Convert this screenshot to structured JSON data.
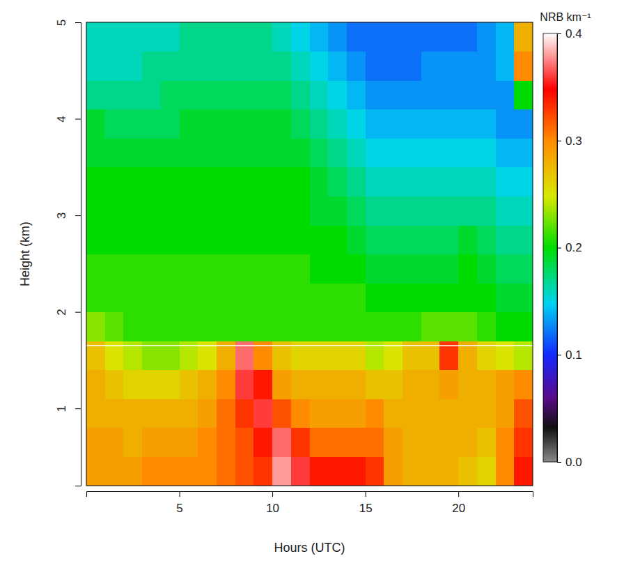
{
  "chart_data": {
    "type": "heatmap",
    "x_label": "Hours (UTC)",
    "y_label": "Height (km)",
    "xlim": [
      0,
      24
    ],
    "ylim": [
      0.2,
      5
    ],
    "xticks": [
      5,
      10,
      15,
      20
    ],
    "yticks": [
      1,
      2,
      3,
      4,
      5
    ],
    "x_edges": [
      0,
      1,
      2,
      3,
      4,
      5,
      6,
      7,
      8,
      9,
      10,
      11,
      12,
      13,
      14,
      15,
      16,
      17,
      18,
      19,
      20,
      21,
      22,
      23,
      24
    ],
    "y_edges": [
      0.2,
      0.5,
      0.8,
      1.1,
      1.4,
      1.7,
      2.0,
      2.3,
      2.6,
      2.9,
      3.2,
      3.5,
      3.8,
      4.1,
      4.4,
      4.7,
      5.0
    ],
    "z": [
      [
        0.29,
        0.29,
        0.29,
        0.3,
        0.3,
        0.3,
        0.3,
        0.31,
        0.32,
        0.33,
        0.38,
        0.36,
        0.34,
        0.34,
        0.34,
        0.33,
        0.29,
        0.28,
        0.28,
        0.28,
        0.27,
        0.26,
        0.3,
        0.34
      ],
      [
        0.29,
        0.29,
        0.28,
        0.29,
        0.29,
        0.29,
        0.3,
        0.31,
        0.32,
        0.34,
        0.37,
        0.33,
        0.31,
        0.31,
        0.31,
        0.31,
        0.29,
        0.28,
        0.28,
        0.28,
        0.28,
        0.27,
        0.3,
        0.33
      ],
      [
        0.28,
        0.28,
        0.28,
        0.28,
        0.28,
        0.28,
        0.29,
        0.31,
        0.33,
        0.36,
        0.32,
        0.3,
        0.29,
        0.29,
        0.29,
        0.3,
        0.28,
        0.28,
        0.28,
        0.28,
        0.28,
        0.28,
        0.29,
        0.32
      ],
      [
        0.28,
        0.27,
        0.26,
        0.26,
        0.26,
        0.27,
        0.28,
        0.3,
        0.36,
        0.34,
        0.29,
        0.28,
        0.28,
        0.28,
        0.28,
        0.27,
        0.27,
        0.28,
        0.28,
        0.29,
        0.28,
        0.28,
        0.29,
        0.3
      ],
      [
        0.27,
        0.25,
        0.24,
        0.23,
        0.23,
        0.24,
        0.25,
        0.28,
        0.37,
        0.3,
        0.27,
        0.26,
        0.26,
        0.26,
        0.26,
        0.24,
        0.25,
        0.27,
        0.27,
        0.33,
        0.28,
        0.26,
        0.25,
        0.24
      ],
      [
        0.23,
        0.22,
        0.21,
        0.21,
        0.21,
        0.21,
        0.21,
        0.21,
        0.21,
        0.21,
        0.21,
        0.21,
        0.21,
        0.21,
        0.21,
        0.21,
        0.21,
        0.21,
        0.22,
        0.22,
        0.22,
        0.21,
        0.2,
        0.2
      ],
      [
        0.21,
        0.21,
        0.21,
        0.21,
        0.21,
        0.21,
        0.21,
        0.21,
        0.21,
        0.21,
        0.21,
        0.21,
        0.21,
        0.21,
        0.21,
        0.2,
        0.2,
        0.2,
        0.2,
        0.2,
        0.2,
        0.2,
        0.19,
        0.19
      ],
      [
        0.21,
        0.21,
        0.21,
        0.21,
        0.21,
        0.21,
        0.21,
        0.21,
        0.21,
        0.21,
        0.21,
        0.21,
        0.2,
        0.2,
        0.2,
        0.19,
        0.19,
        0.19,
        0.19,
        0.19,
        0.2,
        0.19,
        0.18,
        0.18
      ],
      [
        0.2,
        0.2,
        0.2,
        0.2,
        0.2,
        0.2,
        0.2,
        0.2,
        0.2,
        0.2,
        0.2,
        0.2,
        0.2,
        0.2,
        0.19,
        0.18,
        0.18,
        0.18,
        0.18,
        0.18,
        0.19,
        0.18,
        0.17,
        0.17
      ],
      [
        0.2,
        0.2,
        0.2,
        0.2,
        0.2,
        0.2,
        0.2,
        0.2,
        0.2,
        0.2,
        0.2,
        0.2,
        0.19,
        0.19,
        0.18,
        0.17,
        0.17,
        0.17,
        0.17,
        0.17,
        0.17,
        0.17,
        0.16,
        0.16
      ],
      [
        0.2,
        0.2,
        0.2,
        0.2,
        0.2,
        0.2,
        0.2,
        0.2,
        0.2,
        0.2,
        0.2,
        0.2,
        0.19,
        0.18,
        0.17,
        0.16,
        0.16,
        0.16,
        0.16,
        0.16,
        0.16,
        0.16,
        0.15,
        0.15
      ],
      [
        0.19,
        0.19,
        0.19,
        0.19,
        0.19,
        0.19,
        0.19,
        0.19,
        0.19,
        0.19,
        0.19,
        0.19,
        0.18,
        0.17,
        0.16,
        0.15,
        0.15,
        0.15,
        0.15,
        0.15,
        0.15,
        0.15,
        0.14,
        0.14
      ],
      [
        0.19,
        0.18,
        0.18,
        0.18,
        0.18,
        0.19,
        0.19,
        0.19,
        0.19,
        0.19,
        0.19,
        0.18,
        0.17,
        0.16,
        0.15,
        0.14,
        0.14,
        0.14,
        0.14,
        0.14,
        0.14,
        0.14,
        0.13,
        0.13
      ],
      [
        0.17,
        0.17,
        0.17,
        0.17,
        0.18,
        0.18,
        0.18,
        0.18,
        0.18,
        0.18,
        0.18,
        0.17,
        0.16,
        0.15,
        0.14,
        0.13,
        0.13,
        0.13,
        0.13,
        0.13,
        0.13,
        0.13,
        0.13,
        0.2
      ],
      [
        0.16,
        0.16,
        0.16,
        0.17,
        0.17,
        0.17,
        0.17,
        0.17,
        0.17,
        0.17,
        0.17,
        0.16,
        0.15,
        0.14,
        0.13,
        0.12,
        0.12,
        0.12,
        0.13,
        0.13,
        0.13,
        0.13,
        0.14,
        0.3
      ],
      [
        0.16,
        0.16,
        0.16,
        0.16,
        0.16,
        0.17,
        0.17,
        0.17,
        0.17,
        0.17,
        0.16,
        0.15,
        0.14,
        0.13,
        0.12,
        0.12,
        0.12,
        0.12,
        0.12,
        0.12,
        0.12,
        0.13,
        0.14,
        0.28
      ]
    ],
    "hline": 1.65,
    "colorbar": {
      "title": "NRB km⁻¹",
      "range": [
        0,
        0.4
      ],
      "ticks": [
        {
          "value": 0,
          "label": "0.0"
        },
        0.1,
        0.2,
        0.3,
        0.4
      ]
    }
  }
}
